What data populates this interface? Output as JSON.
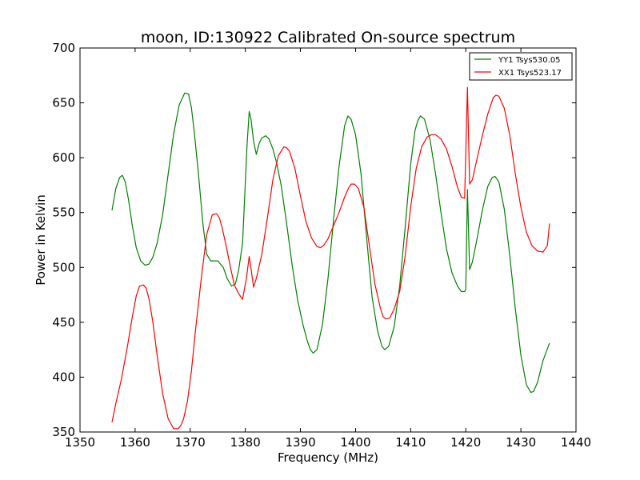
{
  "chart_data": {
    "type": "line",
    "title": "moon, ID:130922 Calibrated On-source spectrum",
    "xlabel": "Frequency (MHz)",
    "ylabel": "Power in Kelvin",
    "xlim": [
      1350,
      1440
    ],
    "ylim": [
      350,
      700
    ],
    "xticks": [
      "1350",
      "1360",
      "1370",
      "1380",
      "1390",
      "1400",
      "1410",
      "1420",
      "1430",
      "1440"
    ],
    "yticks": [
      "350",
      "400",
      "450",
      "500",
      "550",
      "600",
      "650",
      "700"
    ],
    "grid": false,
    "legend_position": "top-right",
    "series": [
      {
        "name": "YY1 Tsys530.05",
        "color": "#008000",
        "x": [
          1355.8,
          1356.5,
          1357.2,
          1357.7,
          1358.2,
          1358.8,
          1359.5,
          1360.2,
          1361.0,
          1361.8,
          1362.5,
          1363.2,
          1364.0,
          1365.0,
          1366.0,
          1367.0,
          1368.0,
          1369.0,
          1369.7,
          1370.2,
          1370.7,
          1371.5,
          1372.3,
          1373.0,
          1373.7,
          1374.3,
          1375.0,
          1376.0,
          1376.7,
          1377.5,
          1378.2,
          1378.8,
          1379.5,
          1380.3,
          1380.7,
          1381.0,
          1381.5,
          1382.0,
          1382.5,
          1383.0,
          1383.7,
          1384.3,
          1385.0,
          1385.7,
          1386.5,
          1387.5,
          1388.5,
          1389.5,
          1390.5,
          1391.3,
          1391.8,
          1392.3,
          1393.0,
          1394.0,
          1395.0,
          1396.0,
          1397.0,
          1398.0,
          1398.6,
          1399.2,
          1400.0,
          1401.0,
          1402.0,
          1403.0,
          1404.0,
          1404.8,
          1405.3,
          1406.0,
          1407.0,
          1408.0,
          1409.0,
          1410.0,
          1410.8,
          1411.3,
          1411.8,
          1412.5,
          1413.5,
          1414.5,
          1415.5,
          1416.5,
          1417.5,
          1418.5,
          1419.2,
          1419.8,
          1420.0,
          1420.3,
          1420.7,
          1421.2,
          1422.0,
          1423.0,
          1424.0,
          1424.8,
          1425.3,
          1426.0,
          1427.0,
          1428.0,
          1429.0,
          1430.0,
          1431.0,
          1431.8,
          1432.3,
          1433.0,
          1434.0,
          1435.2
        ],
        "values": [
          552,
          572,
          582,
          584,
          578,
          562,
          538,
          518,
          506,
          502,
          503,
          509,
          522,
          548,
          585,
          622,
          648,
          659,
          658,
          646,
          625,
          585,
          540,
          512,
          506,
          506,
          506,
          500,
          490,
          483,
          485,
          498,
          522,
          610,
          642,
          636,
          615,
          603,
          613,
          618,
          620,
          617,
          608,
          595,
          575,
          540,
          502,
          470,
          447,
          432,
          425,
          422,
          425,
          448,
          490,
          543,
          592,
          629,
          638,
          635,
          621,
          585,
          528,
          473,
          442,
          428,
          425,
          428,
          446,
          483,
          536,
          594,
          625,
          634,
          638,
          635,
          617,
          586,
          550,
          517,
          495,
          483,
          478,
          478,
          480,
          571,
          498,
          505,
          525,
          552,
          574,
          582,
          583,
          578,
          553,
          510,
          462,
          420,
          393,
          386,
          387,
          395,
          415,
          431
        ]
      },
      {
        "name": "XX1 Tsys523.17",
        "color": "#ff0000",
        "x": [
          1355.8,
          1356.5,
          1357.5,
          1358.5,
          1359.5,
          1360.2,
          1360.8,
          1361.5,
          1362.0,
          1362.5,
          1363.2,
          1364.0,
          1365.0,
          1366.0,
          1367.0,
          1367.8,
          1368.3,
          1368.8,
          1369.5,
          1370.2,
          1371.0,
          1372.0,
          1373.0,
          1374.0,
          1374.8,
          1375.3,
          1375.8,
          1376.5,
          1377.3,
          1378.0,
          1378.8,
          1379.5,
          1380.2,
          1380.7,
          1381.0,
          1381.5,
          1382.0,
          1383.0,
          1384.0,
          1385.0,
          1386.0,
          1387.0,
          1387.5,
          1388.0,
          1389.0,
          1390.0,
          1391.0,
          1392.0,
          1393.0,
          1393.6,
          1394.2,
          1395.0,
          1396.0,
          1397.0,
          1398.0,
          1398.7,
          1399.2,
          1399.8,
          1400.5,
          1401.5,
          1402.5,
          1403.5,
          1404.5,
          1405.0,
          1405.5,
          1406.2,
          1407.0,
          1408.0,
          1409.0,
          1410.0,
          1411.0,
          1412.0,
          1413.0,
          1413.8,
          1414.5,
          1415.5,
          1416.5,
          1417.5,
          1418.5,
          1419.2,
          1419.8,
          1420.3,
          1420.7,
          1421.2,
          1422.0,
          1423.0,
          1424.0,
          1425.0,
          1425.5,
          1426.0,
          1427.0,
          1428.0,
          1429.0,
          1430.0,
          1431.0,
          1432.0,
          1433.0,
          1434.0,
          1434.8,
          1435.2
        ],
        "values": [
          359,
          376,
          398,
          425,
          455,
          474,
          483,
          484,
          481,
          472,
          451,
          420,
          385,
          362,
          353,
          353,
          356,
          362,
          378,
          405,
          445,
          490,
          530,
          548,
          549,
          545,
          536,
          520,
          500,
          484,
          476,
          471,
          490,
          510,
          500,
          482,
          490,
          512,
          545,
          580,
          602,
          610,
          609,
          606,
          590,
          565,
          542,
          527,
          519,
          518,
          520,
          526,
          538,
          550,
          564,
          572,
          576,
          576,
          572,
          555,
          520,
          485,
          463,
          455,
          453,
          454,
          462,
          478,
          510,
          555,
          590,
          610,
          619,
          621,
          621,
          617,
          608,
          592,
          573,
          564,
          563,
          664,
          576,
          580,
          598,
          620,
          640,
          655,
          657,
          656,
          645,
          620,
          585,
          555,
          532,
          520,
          515,
          514,
          520,
          540
        ]
      }
    ]
  }
}
